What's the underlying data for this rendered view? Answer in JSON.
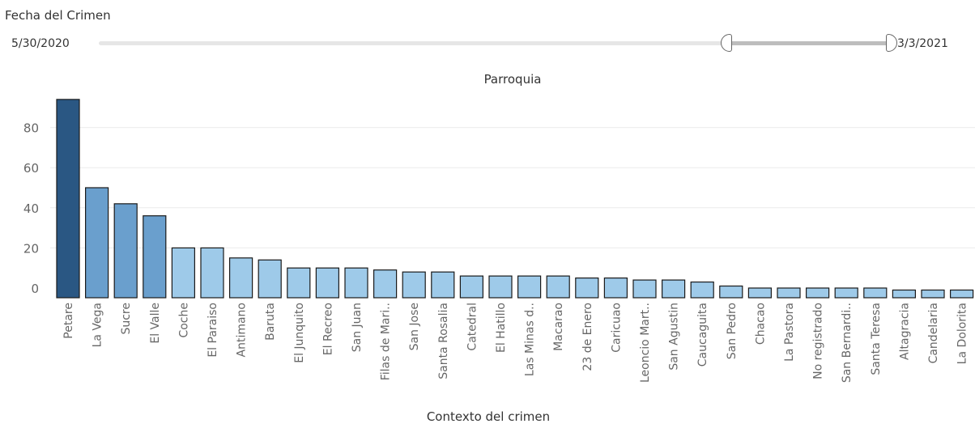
{
  "filter": {
    "title": "Fecha del Crimen",
    "range_start": "5/30/2020",
    "range_end": "3/3/2021",
    "selected_fraction_start": 0.79,
    "selected_fraction_end": 1.0
  },
  "chart_data": {
    "type": "bar",
    "title": "Parroquia",
    "xlabel": "Contexto del crimen",
    "ylabel": "",
    "ylim": [
      0,
      100
    ],
    "yticks": [
      0,
      20,
      40,
      60,
      80
    ],
    "grid": true,
    "categories": [
      "Petare",
      "La Vega",
      "Sucre",
      "El Valle",
      "Coche",
      "El Paraiso",
      "Antimano",
      "Baruta",
      "El Junquito",
      "El Recreo",
      "San Juan",
      "Filas de Mari..",
      "San Jose",
      "Santa Rosalia",
      "Catedral",
      "El Hatillo",
      "Las Minas d..",
      "Macarao",
      "23 de Enero",
      "Caricuao",
      "Leoncio Mart..",
      "San Agustin",
      "Caucaguita",
      "San Pedro",
      "Chacao",
      "La Pastora",
      "No registrado",
      "San Bernardi..",
      "Santa Teresa",
      "Altagracia",
      "Candelaria",
      "La Dolorita"
    ],
    "values": [
      94,
      50,
      42,
      36,
      20,
      20,
      15,
      14,
      10,
      10,
      10,
      9,
      8,
      8,
      6,
      6,
      6,
      6,
      5,
      5,
      4,
      4,
      3,
      1,
      0,
      0,
      0,
      0,
      0,
      -1,
      -1,
      -1
    ],
    "colors": {
      "dark": "#2a5783",
      "mid": "#6a9fcd",
      "light": "#9ecae9",
      "stroke": "#1a1a1a",
      "grid": "#ececec",
      "tick_text": "#666666"
    }
  }
}
